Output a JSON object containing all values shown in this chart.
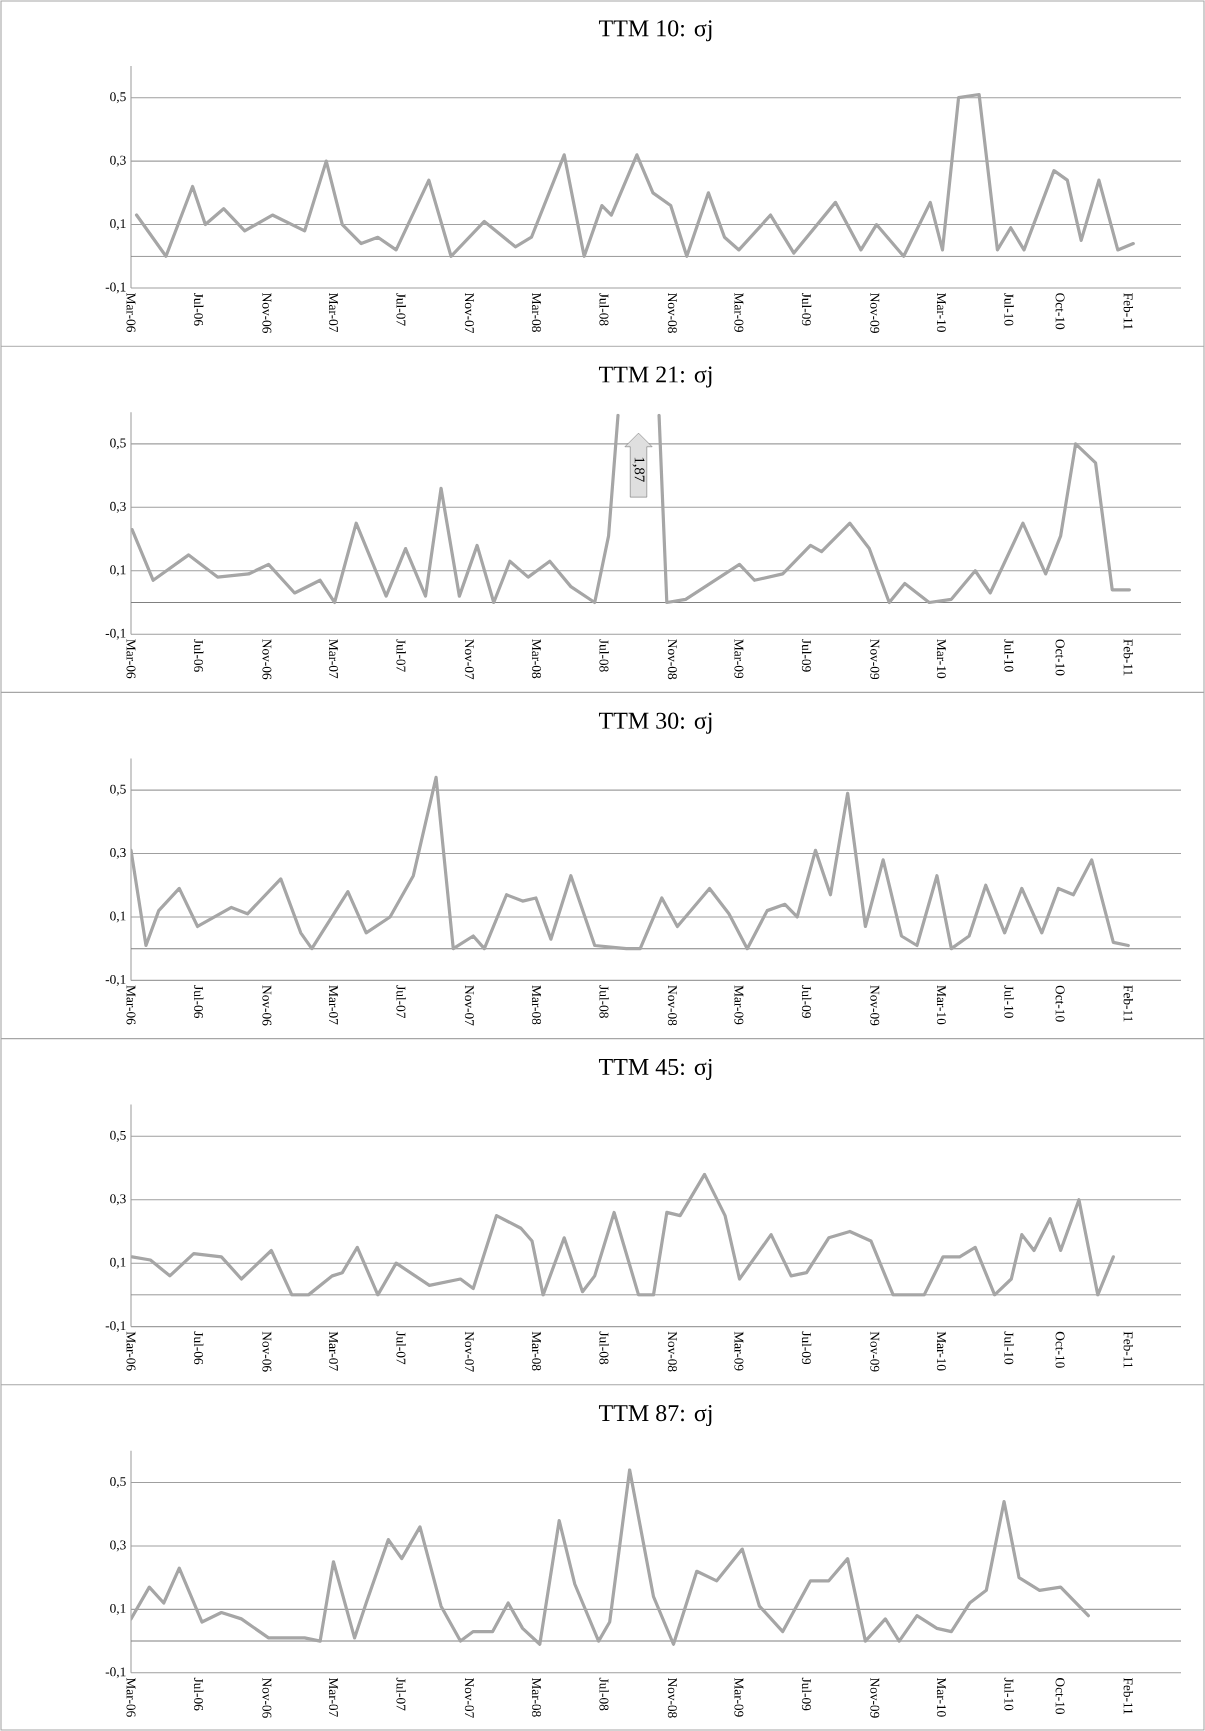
{
  "chart_data": [
    {
      "type": "line",
      "title": "TTM 10: σj",
      "grid": "y",
      "xlim": [
        "2006-03-01",
        "2011-05-07"
      ],
      "ylim": [
        -0.1,
        0.6
      ],
      "xticks": [
        {
          "value": "2006-03-01",
          "label": "Mar-06"
        },
        {
          "value": "2006-07-01",
          "label": "Jul-06"
        },
        {
          "value": "2006-11-01",
          "label": "Nov-06"
        },
        {
          "value": "2007-03-01",
          "label": "Mar-07"
        },
        {
          "value": "2007-07-01",
          "label": "Jul-07"
        },
        {
          "value": "2007-11-01",
          "label": "Nov-07"
        },
        {
          "value": "2008-03-01",
          "label": "Mar-08"
        },
        {
          "value": "2008-07-01",
          "label": "Jul-08"
        },
        {
          "value": "2008-11-01",
          "label": "Nov-08"
        },
        {
          "value": "2009-03-01",
          "label": "Mar-09"
        },
        {
          "value": "2009-07-01",
          "label": "Jul-09"
        },
        {
          "value": "2009-11-01",
          "label": "Nov-09"
        },
        {
          "value": "2010-03-01",
          "label": "Mar-10"
        },
        {
          "value": "2010-07-01",
          "label": "Jul-10"
        },
        {
          "value": "2010-10-01",
          "label": "Oct-10"
        },
        {
          "value": "2011-02-01",
          "label": "Feb-11"
        }
      ],
      "yticks": [
        {
          "value": -0.1,
          "label": "-0,1"
        },
        {
          "value": 0.1,
          "label": "0,1"
        },
        {
          "value": 0.3,
          "label": "0,3"
        },
        {
          "value": 0.5,
          "label": "0,5"
        }
      ],
      "ref_lines": [
        {
          "axis": "y",
          "value": 0,
          "color": "#808080"
        }
      ],
      "x": [
        "2006-03-11",
        "2006-05-03",
        "2006-06-20",
        "2006-07-13",
        "2006-08-15",
        "2006-09-22",
        "2006-11-11",
        "2007-01-08",
        "2007-02-16",
        "2007-03-17",
        "2007-04-20",
        "2007-05-20",
        "2007-06-22",
        "2007-08-20",
        "2007-09-29",
        "2007-11-28",
        "2008-01-23",
        "2008-02-21",
        "2008-04-20",
        "2008-05-26",
        "2008-06-27",
        "2008-07-14",
        "2008-08-29",
        "2008-09-27",
        "2008-10-29",
        "2008-11-27",
        "2009-01-05",
        "2009-02-03",
        "2009-03-01",
        "2009-04-27",
        "2009-06-08",
        "2009-08-22",
        "2009-10-07",
        "2009-11-04",
        "2009-12-23",
        "2010-02-09",
        "2010-03-03",
        "2010-04-01",
        "2010-05-08",
        "2010-06-10",
        "2010-07-04",
        "2010-07-28",
        "2010-09-20",
        "2010-10-14",
        "2010-11-08",
        "2010-12-10",
        "2011-01-13",
        "2011-02-10"
      ],
      "series": [
        {
          "color": "#a6a6a6",
          "values": [
            0.13,
            0.0,
            0.22,
            0.1,
            0.15,
            0.08,
            0.13,
            0.08,
            0.3,
            0.1,
            0.04,
            0.06,
            0.02,
            0.24,
            0.0,
            0.11,
            0.03,
            0.06,
            0.32,
            0.0,
            0.16,
            0.13,
            0.32,
            0.2,
            0.16,
            0.0,
            0.2,
            0.06,
            0.02,
            0.13,
            0.01,
            0.17,
            0.02,
            0.1,
            0.0,
            0.17,
            0.02,
            0.5,
            0.51,
            0.02,
            0.09,
            0.02,
            0.27,
            0.24,
            0.05,
            0.24,
            0.02,
            0.04
          ]
        }
      ]
    },
    {
      "type": "line",
      "title": "TTM 21: σj",
      "grid": "y",
      "xlim": [
        "2006-03-01",
        "2011-05-07"
      ],
      "ylim": [
        -0.1,
        0.6
      ],
      "xticks": [
        {
          "value": "2006-03-01",
          "label": "Mar-06"
        },
        {
          "value": "2006-07-01",
          "label": "Jul-06"
        },
        {
          "value": "2006-11-01",
          "label": "Nov-06"
        },
        {
          "value": "2007-03-01",
          "label": "Mar-07"
        },
        {
          "value": "2007-07-01",
          "label": "Jul-07"
        },
        {
          "value": "2007-11-01",
          "label": "Nov-07"
        },
        {
          "value": "2008-03-01",
          "label": "Mar-08"
        },
        {
          "value": "2008-07-01",
          "label": "Jul-08"
        },
        {
          "value": "2008-11-01",
          "label": "Nov-08"
        },
        {
          "value": "2009-03-01",
          "label": "Mar-09"
        },
        {
          "value": "2009-07-01",
          "label": "Jul-09"
        },
        {
          "value": "2009-11-01",
          "label": "Nov-09"
        },
        {
          "value": "2010-03-01",
          "label": "Mar-10"
        },
        {
          "value": "2010-07-01",
          "label": "Jul-10"
        },
        {
          "value": "2010-10-01",
          "label": "Oct-10"
        },
        {
          "value": "2011-02-01",
          "label": "Feb-11"
        }
      ],
      "yticks": [
        {
          "value": -0.1,
          "label": "-0,1"
        },
        {
          "value": 0.1,
          "label": "0,1"
        },
        {
          "value": 0.3,
          "label": "0,3"
        },
        {
          "value": 0.5,
          "label": "0,5"
        }
      ],
      "ref_lines": [
        {
          "axis": "y",
          "value": 0,
          "color": "#808080"
        }
      ],
      "annotations": [
        "1,87"
      ],
      "x": [
        "2006-03-03",
        "2006-04-10",
        "2006-06-13",
        "2006-08-04",
        "2006-09-29",
        "2006-11-04",
        "2006-12-21",
        "2007-02-05",
        "2007-03-03",
        "2007-04-11",
        "2007-06-04",
        "2007-07-09",
        "2007-08-14",
        "2007-09-11",
        "2007-10-14",
        "2007-11-15",
        "2007-12-15",
        "2008-01-13",
        "2008-02-15",
        "2008-03-25",
        "2008-05-02",
        "2008-06-14",
        "2008-07-09",
        "2008-07-26",
        "2008-09-01",
        "2008-10-08",
        "2008-10-22",
        "2008-11-25",
        "2009-03-02",
        "2009-03-29",
        "2009-05-19",
        "2009-07-08",
        "2009-07-28",
        "2009-09-17",
        "2009-10-22",
        "2009-11-27",
        "2009-12-25",
        "2010-02-07",
        "2010-03-19",
        "2010-05-01",
        "2010-05-28",
        "2010-07-26",
        "2010-09-05",
        "2010-10-02",
        "2010-10-29",
        "2010-12-04",
        "2011-01-03",
        "2011-02-03"
      ],
      "series": [
        {
          "color": "#a6a6a6",
          "values": [
            0.23,
            0.07,
            0.15,
            0.08,
            0.09,
            0.12,
            0.03,
            0.07,
            0.0,
            0.25,
            0.02,
            0.17,
            0.02,
            0.36,
            0.02,
            0.18,
            0.0,
            0.13,
            0.08,
            0.13,
            0.05,
            0.0,
            0.21,
            0.59,
            null,
            0.59,
            0.0,
            0.01,
            0.12,
            0.07,
            0.09,
            0.18,
            0.16,
            0.25,
            0.17,
            0.0,
            0.06,
            0.0,
            0.01,
            0.1,
            0.03,
            0.25,
            0.09,
            0.21,
            0.5,
            0.44,
            0.04,
            0.04
          ]
        }
      ]
    },
    {
      "type": "line",
      "title": "TTM 30: σj",
      "grid": "y",
      "xlim": [
        "2006-03-01",
        "2011-05-07"
      ],
      "ylim": [
        -0.1,
        0.6
      ],
      "xticks": [
        {
          "value": "2006-03-01",
          "label": "Mar-06"
        },
        {
          "value": "2006-07-01",
          "label": "Jul-06"
        },
        {
          "value": "2006-11-01",
          "label": "Nov-06"
        },
        {
          "value": "2007-03-01",
          "label": "Mar-07"
        },
        {
          "value": "2007-07-01",
          "label": "Jul-07"
        },
        {
          "value": "2007-11-01",
          "label": "Nov-07"
        },
        {
          "value": "2008-03-01",
          "label": "Mar-08"
        },
        {
          "value": "2008-07-01",
          "label": "Jul-08"
        },
        {
          "value": "2008-11-01",
          "label": "Nov-08"
        },
        {
          "value": "2009-03-01",
          "label": "Mar-09"
        },
        {
          "value": "2009-07-01",
          "label": "Jul-09"
        },
        {
          "value": "2009-11-01",
          "label": "Nov-09"
        },
        {
          "value": "2010-03-01",
          "label": "Mar-10"
        },
        {
          "value": "2010-07-01",
          "label": "Jul-10"
        },
        {
          "value": "2010-10-01",
          "label": "Oct-10"
        },
        {
          "value": "2011-02-01",
          "label": "Feb-11"
        }
      ],
      "yticks": [
        {
          "value": -0.1,
          "label": "-0,1"
        },
        {
          "value": 0.1,
          "label": "0,1"
        },
        {
          "value": 0.3,
          "label": "0,3"
        },
        {
          "value": 0.5,
          "label": "0,5"
        }
      ],
      "ref_lines": [
        {
          "axis": "y",
          "value": 0,
          "color": "#808080"
        }
      ],
      "x": [
        "2006-03-01",
        "2006-03-28",
        "2006-04-20",
        "2006-05-27",
        "2006-06-29",
        "2006-08-29",
        "2006-09-27",
        "2006-11-26",
        "2007-01-01",
        "2007-01-21",
        "2007-03-27",
        "2007-04-29",
        "2007-06-11",
        "2007-07-23",
        "2007-09-02",
        "2007-10-03",
        "2007-11-08",
        "2007-11-28",
        "2008-01-07",
        "2008-02-05",
        "2008-02-29",
        "2008-03-27",
        "2008-05-02",
        "2008-06-14",
        "2008-08-10",
        "2008-09-04",
        "2008-10-13",
        "2008-11-10",
        "2009-01-07",
        "2009-02-11",
        "2009-03-16",
        "2009-04-21",
        "2009-05-23",
        "2009-06-14",
        "2009-07-17",
        "2009-08-13",
        "2009-09-13",
        "2009-10-15",
        "2009-11-16",
        "2009-12-19",
        "2010-01-16",
        "2010-02-21",
        "2010-03-19",
        "2010-04-20",
        "2010-05-20",
        "2010-06-23",
        "2010-07-24",
        "2010-08-29",
        "2010-09-28",
        "2010-10-25",
        "2010-11-27",
        "2011-01-05",
        "2011-02-01"
      ],
      "series": [
        {
          "color": "#a6a6a6",
          "values": [
            0.31,
            0.01,
            0.12,
            0.19,
            0.07,
            0.13,
            0.11,
            0.22,
            0.05,
            0.0,
            0.18,
            0.05,
            0.1,
            0.23,
            0.54,
            0.0,
            0.04,
            0.0,
            0.17,
            0.15,
            0.16,
            0.03,
            0.23,
            0.01,
            0.0,
            0.0,
            0.16,
            0.07,
            0.19,
            0.11,
            0.0,
            0.12,
            0.14,
            0.1,
            0.31,
            0.17,
            0.49,
            0.07,
            0.28,
            0.04,
            0.01,
            0.23,
            0.0,
            0.04,
            0.2,
            0.05,
            0.19,
            0.05,
            0.19,
            0.17,
            0.28,
            0.02,
            0.01
          ]
        }
      ]
    },
    {
      "type": "line",
      "title": "TTM 45: σj",
      "grid": "y",
      "xlim": [
        "2006-03-01",
        "2011-05-07"
      ],
      "ylim": [
        -0.1,
        0.6
      ],
      "xticks": [
        {
          "value": "2006-03-01",
          "label": "Mar-06"
        },
        {
          "value": "2006-07-01",
          "label": "Jul-06"
        },
        {
          "value": "2006-11-01",
          "label": "Nov-06"
        },
        {
          "value": "2007-03-01",
          "label": "Mar-07"
        },
        {
          "value": "2007-07-01",
          "label": "Jul-07"
        },
        {
          "value": "2007-11-01",
          "label": "Nov-07"
        },
        {
          "value": "2008-03-01",
          "label": "Mar-08"
        },
        {
          "value": "2008-07-01",
          "label": "Jul-08"
        },
        {
          "value": "2008-11-01",
          "label": "Nov-08"
        },
        {
          "value": "2009-03-01",
          "label": "Mar-09"
        },
        {
          "value": "2009-07-01",
          "label": "Jul-09"
        },
        {
          "value": "2009-11-01",
          "label": "Nov-09"
        },
        {
          "value": "2010-03-01",
          "label": "Mar-10"
        },
        {
          "value": "2010-07-01",
          "label": "Jul-10"
        },
        {
          "value": "2010-10-01",
          "label": "Oct-10"
        },
        {
          "value": "2011-02-01",
          "label": "Feb-11"
        }
      ],
      "yticks": [
        {
          "value": -0.1,
          "label": "-0,1"
        },
        {
          "value": 0.1,
          "label": "0,1"
        },
        {
          "value": 0.3,
          "label": "0,3"
        },
        {
          "value": 0.5,
          "label": "0,5"
        }
      ],
      "ref_lines": [
        {
          "axis": "y",
          "value": 0,
          "color": "#808080"
        }
      ],
      "x": [
        "2006-03-03",
        "2006-04-05",
        "2006-05-10",
        "2006-06-22",
        "2006-08-11",
        "2006-09-16",
        "2006-11-09",
        "2006-12-16",
        "2007-01-15",
        "2007-02-27",
        "2007-03-17",
        "2007-04-13",
        "2007-05-20",
        "2007-06-22",
        "2007-08-21",
        "2007-10-16",
        "2007-11-08",
        "2007-12-20",
        "2008-02-02",
        "2008-02-22",
        "2008-03-13",
        "2008-04-20",
        "2008-05-23",
        "2008-06-14",
        "2008-07-19",
        "2008-09-01",
        "2008-09-28",
        "2008-10-22",
        "2008-11-15",
        "2008-12-29",
        "2009-02-04",
        "2009-03-02",
        "2009-04-28",
        "2009-06-03",
        "2009-07-01",
        "2009-08-10",
        "2009-09-17",
        "2009-10-25",
        "2009-12-04",
        "2010-01-02",
        "2010-01-29",
        "2010-03-04",
        "2010-04-03",
        "2010-05-01",
        "2010-06-05",
        "2010-07-05",
        "2010-07-24",
        "2010-08-15",
        "2010-09-13",
        "2010-10-02",
        "2010-11-04",
        "2010-12-08",
        "2011-01-05"
      ],
      "series": [
        {
          "color": "#a6a6a6",
          "values": [
            0.12,
            0.11,
            0.06,
            0.13,
            0.12,
            0.05,
            0.14,
            0.0,
            0.0,
            0.06,
            0.07,
            0.15,
            0.0,
            0.1,
            0.03,
            0.05,
            0.02,
            0.25,
            0.21,
            0.17,
            0.0,
            0.18,
            0.01,
            0.06,
            0.26,
            0.0,
            0.0,
            0.26,
            0.25,
            0.38,
            0.25,
            0.05,
            0.19,
            0.06,
            0.07,
            0.18,
            0.2,
            0.17,
            0.0,
            0.0,
            0.0,
            0.12,
            0.12,
            0.15,
            0.0,
            0.05,
            0.19,
            0.14,
            0.24,
            0.14,
            0.3,
            0.0,
            0.12
          ]
        }
      ]
    },
    {
      "type": "line",
      "title": "TTM 87: σj",
      "grid": "y",
      "xlim": [
        "2006-03-01",
        "2011-05-07"
      ],
      "ylim": [
        -0.1,
        0.6
      ],
      "xticks": [
        {
          "value": "2006-03-01",
          "label": "Mar-06"
        },
        {
          "value": "2006-07-01",
          "label": "Jul-06"
        },
        {
          "value": "2006-11-01",
          "label": "Nov-06"
        },
        {
          "value": "2007-03-01",
          "label": "Mar-07"
        },
        {
          "value": "2007-07-01",
          "label": "Jul-07"
        },
        {
          "value": "2007-11-01",
          "label": "Nov-07"
        },
        {
          "value": "2008-03-01",
          "label": "Mar-08"
        },
        {
          "value": "2008-07-01",
          "label": "Jul-08"
        },
        {
          "value": "2008-11-01",
          "label": "Nov-08"
        },
        {
          "value": "2009-03-01",
          "label": "Mar-09"
        },
        {
          "value": "2009-07-01",
          "label": "Jul-09"
        },
        {
          "value": "2009-11-01",
          "label": "Nov-09"
        },
        {
          "value": "2010-03-01",
          "label": "Mar-10"
        },
        {
          "value": "2010-07-01",
          "label": "Jul-10"
        },
        {
          "value": "2010-10-01",
          "label": "Oct-10"
        },
        {
          "value": "2011-02-01",
          "label": "Feb-11"
        }
      ],
      "yticks": [
        {
          "value": -0.1,
          "label": "-0,1"
        },
        {
          "value": 0.1,
          "label": "0,1"
        },
        {
          "value": 0.3,
          "label": "0,3"
        },
        {
          "value": 0.5,
          "label": "0,5"
        }
      ],
      "ref_lines": [
        {
          "axis": "y",
          "value": 0,
          "color": "#808080"
        }
      ],
      "x": [
        "2006-03-01",
        "2006-04-03",
        "2006-04-29",
        "2006-05-27",
        "2006-07-07",
        "2006-08-11",
        "2006-09-16",
        "2006-11-04",
        "2007-01-08",
        "2007-02-05",
        "2007-03-01",
        "2007-04-08",
        "2007-04-29",
        "2007-06-08",
        "2007-07-02",
        "2007-08-04",
        "2007-09-11",
        "2007-10-16",
        "2007-11-08",
        "2007-12-13",
        "2008-01-10",
        "2008-02-05",
        "2008-03-07",
        "2008-04-11",
        "2008-05-09",
        "2008-06-21",
        "2008-07-11",
        "2008-08-16",
        "2008-09-28",
        "2008-11-03",
        "2008-12-15",
        "2009-01-20",
        "2009-03-07",
        "2009-04-07",
        "2009-05-19",
        "2009-07-08",
        "2009-08-10",
        "2009-09-13",
        "2009-10-15",
        "2009-11-20",
        "2009-12-15",
        "2010-01-16",
        "2010-02-21",
        "2010-03-19",
        "2010-04-21",
        "2010-05-21",
        "2010-06-22",
        "2010-07-19",
        "2010-08-25",
        "2010-10-02",
        "2010-11-21"
      ],
      "series": [
        {
          "color": "#a6a6a6",
          "values": [
            0.07,
            0.17,
            0.12,
            0.23,
            0.06,
            0.09,
            0.07,
            0.01,
            0.01,
            0.0,
            0.25,
            0.01,
            0.12,
            0.32,
            0.26,
            0.36,
            0.11,
            0.0,
            0.03,
            0.03,
            0.12,
            0.04,
            -0.01,
            0.38,
            0.18,
            0.0,
            0.06,
            0.54,
            0.14,
            -0.01,
            0.22,
            0.19,
            0.29,
            0.11,
            0.03,
            0.19,
            0.19,
            0.26,
            0.0,
            0.07,
            0.0,
            0.08,
            0.04,
            0.03,
            0.12,
            0.16,
            0.44,
            0.2,
            0.16,
            0.17,
            0.08
          ]
        }
      ]
    }
  ]
}
